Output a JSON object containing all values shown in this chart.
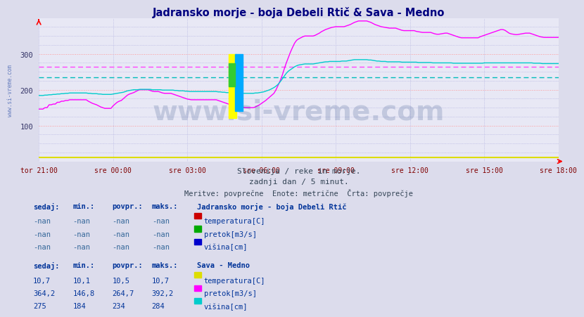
{
  "title": "Jadransko morje - boja Debeli Rtič & Sava - Medno",
  "title_color": "#000080",
  "bg_color": "#dcdcec",
  "plot_bg_color": "#e8e8f5",
  "grid_color_major": "#ff9999",
  "grid_color_minor": "#aaaadd",
  "xlabel_color": "#800000",
  "xtick_labels": [
    "tor 21:00",
    "sre 00:00",
    "sre 03:00",
    "sre 06:00",
    "sre 09:00",
    "sre 12:00",
    "sre 15:00",
    "sre 18:00"
  ],
  "xtick_positions": [
    0,
    36,
    72,
    108,
    144,
    180,
    216,
    252
  ],
  "ytick_positions": [
    100,
    200,
    300
  ],
  "ymin": 0,
  "ymax": 400,
  "n_points": 253,
  "pretok_color": "#ff00ff",
  "visina_color": "#00cccc",
  "pretok_avg": 264.7,
  "visina_avg": 234.0,
  "pretok_avg_color": "#ff44ff",
  "visina_avg_color": "#00bbbb",
  "watermark": "www.si-vreme.com",
  "watermark_color": "#1a3a7a",
  "watermark_alpha": 0.18,
  "watermark_fontsize": 28,
  "subtitle1": "Slovenija / reke in morje.",
  "subtitle2": "zadnji dan / 5 minut.",
  "subtitle3": "Meritve: povprečne  Enote: metrične  Črta: povprečje",
  "subtitle_color": "#334455",
  "table_header_color": "#003399",
  "table_text_color": "#003399",
  "table_nan_color": "#336699",
  "logo_colors": [
    "#ffff00",
    "#00aaff",
    "#33cc33"
  ],
  "pretok_values": [
    146,
    146,
    146,
    150,
    150,
    158,
    158,
    160,
    160,
    165,
    165,
    168,
    168,
    170,
    170,
    172,
    172,
    172,
    172,
    172,
    172,
    172,
    172,
    172,
    168,
    165,
    162,
    160,
    158,
    155,
    152,
    150,
    148,
    148,
    148,
    148,
    155,
    160,
    165,
    168,
    170,
    175,
    180,
    185,
    188,
    190,
    192,
    195,
    198,
    200,
    200,
    200,
    200,
    200,
    198,
    196,
    195,
    195,
    195,
    193,
    191,
    190,
    190,
    190,
    190,
    188,
    186,
    184,
    182,
    180,
    178,
    176,
    174,
    173,
    172,
    172,
    172,
    172,
    172,
    172,
    172,
    172,
    172,
    172,
    172,
    172,
    172,
    170,
    168,
    166,
    164,
    162,
    160,
    158,
    156,
    155,
    154,
    153,
    152,
    151,
    150,
    150,
    150,
    150,
    150,
    152,
    155,
    158,
    162,
    166,
    170,
    175,
    180,
    185,
    190,
    200,
    212,
    225,
    240,
    258,
    275,
    290,
    305,
    318,
    330,
    338,
    342,
    345,
    348,
    350,
    350,
    350,
    350,
    350,
    352,
    355,
    358,
    362,
    365,
    368,
    370,
    372,
    374,
    375,
    376,
    376,
    376,
    376,
    376,
    378,
    380,
    382,
    385,
    388,
    390,
    392,
    392,
    392,
    392,
    392,
    390,
    388,
    385,
    382,
    380,
    378,
    376,
    375,
    374,
    373,
    372,
    372,
    372,
    372,
    370,
    368,
    366,
    365,
    365,
    365,
    365,
    365,
    365,
    363,
    362,
    361,
    360,
    360,
    360,
    360,
    360,
    358,
    356,
    355,
    355,
    356,
    357,
    358,
    358,
    356,
    354,
    352,
    350,
    348,
    346,
    345,
    345,
    345,
    345,
    345,
    345,
    345,
    345,
    345,
    348,
    350,
    352,
    354,
    356,
    358,
    360,
    362,
    364,
    366,
    368,
    368,
    366,
    362,
    358,
    356,
    355,
    354,
    354,
    355,
    356,
    357,
    358,
    358,
    358,
    356,
    354,
    352,
    350,
    348,
    347,
    346,
    346,
    346,
    346,
    346,
    346,
    346,
    346
  ],
  "visina_values": [
    184,
    184,
    184,
    185,
    185,
    186,
    186,
    187,
    187,
    188,
    188,
    189,
    189,
    190,
    190,
    191,
    191,
    191,
    191,
    191,
    191,
    191,
    191,
    191,
    190,
    190,
    189,
    189,
    189,
    188,
    188,
    187,
    187,
    187,
    187,
    187,
    188,
    189,
    190,
    191,
    192,
    193,
    195,
    197,
    198,
    199,
    200,
    200,
    200,
    201,
    201,
    201,
    201,
    201,
    201,
    200,
    200,
    200,
    200,
    200,
    199,
    199,
    199,
    199,
    199,
    199,
    198,
    198,
    197,
    197,
    197,
    196,
    196,
    195,
    195,
    195,
    195,
    195,
    195,
    195,
    195,
    195,
    195,
    195,
    195,
    195,
    195,
    194,
    194,
    193,
    193,
    192,
    192,
    192,
    191,
    191,
    190,
    190,
    190,
    190,
    190,
    190,
    190,
    190,
    190,
    191,
    191,
    192,
    193,
    194,
    196,
    198,
    200,
    203,
    206,
    210,
    215,
    222,
    230,
    238,
    246,
    252,
    256,
    260,
    264,
    267,
    269,
    270,
    271,
    272,
    272,
    272,
    272,
    272,
    273,
    274,
    275,
    276,
    277,
    278,
    278,
    279,
    279,
    279,
    279,
    279,
    279,
    280,
    280,
    280,
    281,
    282,
    283,
    284,
    284,
    284,
    284,
    284,
    284,
    284,
    283,
    283,
    282,
    281,
    280,
    280,
    279,
    279,
    279,
    278,
    278,
    278,
    278,
    278,
    278,
    278,
    277,
    277,
    277,
    277,
    277,
    277,
    277,
    277,
    276,
    276,
    276,
    276,
    276,
    276,
    276,
    275,
    275,
    275,
    275,
    275,
    275,
    275,
    275,
    275,
    275,
    274,
    274,
    274,
    274,
    274,
    274,
    274,
    274,
    274,
    274,
    274,
    274,
    274,
    274,
    274,
    275,
    275,
    275,
    275,
    275,
    275,
    275,
    275,
    275,
    275,
    275,
    275,
    275,
    275,
    275,
    275,
    275,
    275,
    275,
    275,
    275,
    275,
    275,
    275,
    274,
    274,
    274,
    274,
    273,
    273,
    273,
    273,
    273,
    273,
    273,
    273,
    273
  ]
}
